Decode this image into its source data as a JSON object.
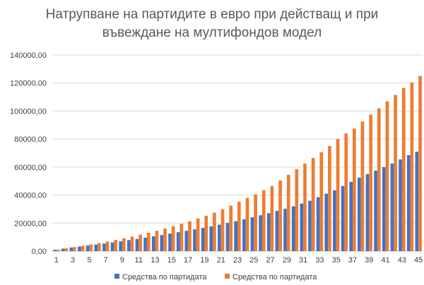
{
  "chart_data": {
    "type": "bar",
    "title_line1": "Натрупване на партидите в евро при действащ и при",
    "title_line2": "въвеждане на мултифондов модел",
    "xlabel": "",
    "ylabel": "",
    "ylim": [
      0,
      140000
    ],
    "y_ticks": [
      "0,00",
      "20000,00",
      "40000,00",
      "60000,00",
      "80000,00",
      "100000,00",
      "120000,00",
      "140000,00"
    ],
    "x_tick_labels": [
      "1",
      "3",
      "5",
      "7",
      "9",
      "11",
      "13",
      "15",
      "17",
      "19",
      "21",
      "23",
      "25",
      "27",
      "29",
      "31",
      "33",
      "35",
      "37",
      "39",
      "41",
      "43",
      "45"
    ],
    "categories": [
      "1",
      "2",
      "3",
      "4",
      "5",
      "6",
      "7",
      "8",
      "9",
      "10",
      "11",
      "12",
      "13",
      "14",
      "15",
      "16",
      "17",
      "18",
      "19",
      "20",
      "21",
      "22",
      "23",
      "24",
      "25",
      "26",
      "27",
      "28",
      "29",
      "30",
      "31",
      "32",
      "33",
      "34",
      "35",
      "36",
      "37",
      "38",
      "39",
      "40",
      "41",
      "42",
      "43",
      "44",
      "45"
    ],
    "grid": true,
    "legend_position": "bottom",
    "series": [
      {
        "name": "Средства по партидата",
        "color": "#4472c4",
        "values": [
          1000,
          1800,
          2600,
          3300,
          4000,
          4700,
          5400,
          6200,
          7000,
          7900,
          8700,
          9600,
          10600,
          11500,
          12500,
          13500,
          14500,
          15500,
          16600,
          17700,
          18900,
          20100,
          21400,
          22800,
          24200,
          25600,
          27100,
          28700,
          30300,
          32000,
          34000,
          36000,
          38500,
          41000,
          43500,
          46500,
          49500,
          52500,
          55000,
          57500,
          60000,
          62500,
          65500,
          68500,
          71000
        ]
      },
      {
        "name": "Средства по партидата",
        "color": "#ed7d31",
        "values": [
          1100,
          2000,
          2900,
          3800,
          4800,
          5800,
          6900,
          8000,
          9200,
          10400,
          11800,
          13100,
          14500,
          16200,
          17800,
          19500,
          21300,
          23300,
          25300,
          27500,
          30000,
          32500,
          35300,
          38000,
          40500,
          43500,
          46500,
          50500,
          54500,
          58500,
          62500,
          66500,
          70500,
          75000,
          80000,
          84000,
          87500,
          92500,
          97500,
          102000,
          107000,
          111500,
          116500,
          120500,
          125000
        ]
      }
    ]
  }
}
